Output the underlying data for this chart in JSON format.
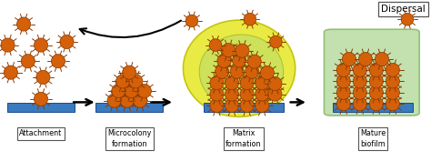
{
  "fig_width": 4.74,
  "fig_height": 1.77,
  "dpi": 100,
  "background_color": "#ffffff",
  "stages": [
    "Attachment",
    "Microcolony\nformation",
    "Matrix\nformation",
    "Mature\nbiofilm"
  ],
  "bacteria_color": "#d4600a",
  "bacteria_edge": "#8b3a00",
  "surface_color": "#3a7abf",
  "surface_edge": "#1a4a8f",
  "matrix_yellow": "#e8e830",
  "matrix_green": "#c8e060",
  "mature_green": "#b8dca0",
  "mature_green_edge": "#88b868",
  "dispersal_label": "Dispersal"
}
